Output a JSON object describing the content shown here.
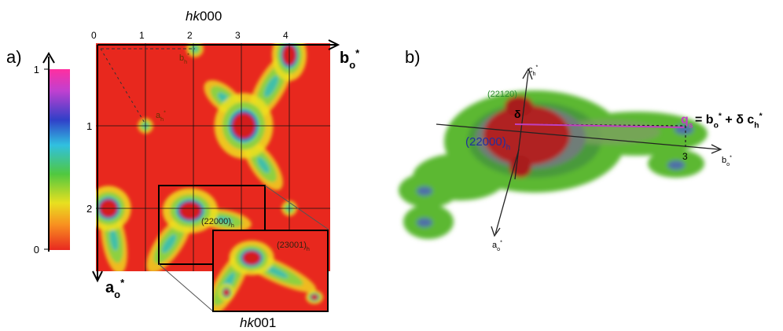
{
  "panel_a": {
    "label": "a)",
    "title_top": [
      {
        "italic": "hk"
      },
      {
        "text": "000"
      }
    ],
    "title_bottom": [
      {
        "italic": "hk"
      },
      {
        "text": "001"
      }
    ],
    "colorbar_ticks": [
      "1",
      "0"
    ],
    "top_ticks": [
      "0",
      "1",
      "2",
      "3",
      "4"
    ],
    "left_ticks": [
      "1",
      "2"
    ],
    "axis_b": [
      {
        "text": "b"
      },
      {
        "sub": "o"
      },
      {
        "sup": "*"
      }
    ],
    "axis_a": [
      {
        "text": "a"
      },
      {
        "sub": "o"
      },
      {
        "sup": "*"
      }
    ],
    "bh": [
      {
        "text": "b"
      },
      {
        "sub": "h"
      },
      {
        "sup": "*"
      }
    ],
    "ah": [
      {
        "text": "a"
      },
      {
        "sub": "h"
      },
      {
        "sup": "*"
      }
    ],
    "peak_main": [
      {
        "text": "(22000)"
      },
      {
        "sub": "h"
      }
    ],
    "peak_inset": [
      {
        "text": "(23001)"
      },
      {
        "sub": "h"
      }
    ]
  },
  "panel_b": {
    "label": "b)",
    "ch": [
      {
        "text": "c"
      },
      {
        "sub": "h"
      },
      {
        "sup": "*"
      }
    ],
    "peak_top": "(22120)",
    "delta": "δ",
    "peak_center": [
      {
        "text": "(22000)"
      },
      {
        "sub": "h"
      }
    ],
    "q": [
      {
        "text": "q"
      },
      {
        "sub": "s"
      }
    ],
    "equation": [
      {
        "text": " = b"
      },
      {
        "sub": "o"
      },
      {
        "sup": "*"
      },
      {
        "text": " + δ c"
      },
      {
        "sub": "h"
      },
      {
        "sup": "*"
      }
    ],
    "tick": "3",
    "axis_b": [
      {
        "text": "b"
      },
      {
        "sub": "o"
      },
      {
        "sup": "*"
      }
    ],
    "axis_a": [
      {
        "text": "a"
      },
      {
        "sub": "o"
      },
      {
        "sup": "*"
      }
    ]
  }
}
